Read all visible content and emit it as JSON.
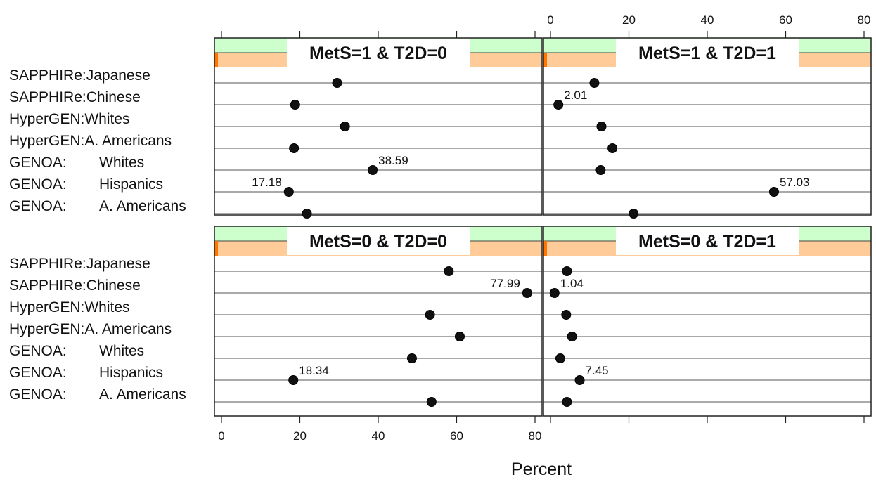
{
  "chart_data": {
    "type": "scatter",
    "title": "",
    "xlabel": "Percent",
    "ylabel": "",
    "xlim": [
      0,
      80
    ],
    "xticks": [
      "0",
      "20",
      "40",
      "60",
      "80"
    ],
    "grid": true,
    "layout": "2x2 panels, top-axis ticks on top-right panel, bottom-axis ticks on bottom-left panel",
    "categories": [
      [
        "SAPPHIRe:Japanese"
      ],
      [
        "SAPPHIRe:Chinese"
      ],
      [
        "HyperGEN:Whites"
      ],
      [
        "HyperGEN:A. Americans"
      ],
      [
        "GENOA:",
        "Whites"
      ],
      [
        "GENOA:",
        "Hispanics"
      ],
      [
        "GENOA:",
        "A. Americans"
      ]
    ],
    "panels": [
      {
        "title": "MetS=1 & T2D=0",
        "row": 0,
        "col": 0,
        "values": [
          29.5,
          18.8,
          31.5,
          18.5,
          38.59,
          17.18,
          21.8
        ],
        "labels": [
          null,
          null,
          null,
          null,
          "38.59",
          "17.18",
          null
        ]
      },
      {
        "title": "MetS=1 & T2D=1",
        "row": 0,
        "col": 1,
        "values": [
          11.2,
          2.01,
          13.0,
          15.8,
          12.8,
          57.03,
          21.2
        ],
        "labels": [
          null,
          "2.01",
          null,
          null,
          null,
          "57.03",
          null
        ]
      },
      {
        "title": "MetS=0 & T2D=0",
        "row": 1,
        "col": 0,
        "values": [
          58.0,
          77.99,
          53.2,
          60.8,
          48.6,
          18.34,
          53.6
        ],
        "labels": [
          null,
          "77.99",
          null,
          null,
          null,
          "18.34",
          null
        ]
      },
      {
        "title": "MetS=0 & T2D=1",
        "row": 1,
        "col": 1,
        "values": [
          4.2,
          1.04,
          4.0,
          5.5,
          2.5,
          7.45,
          4.2
        ],
        "labels": [
          null,
          "1.04",
          null,
          null,
          null,
          "7.45",
          null
        ]
      }
    ],
    "colors": {
      "strip_top": "#ccffcc",
      "strip_bottom": "#ffcc99",
      "strip_edge_green": "#22cc22",
      "strip_edge_orange": "#ff7700",
      "dot": "#111111"
    }
  }
}
